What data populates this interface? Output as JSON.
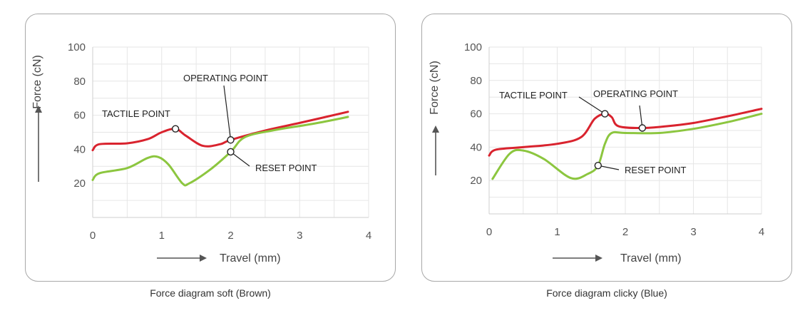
{
  "captions": [
    "Force diagram soft (Brown)",
    "Force diagram clicky (Blue)"
  ],
  "colors": {
    "red": "#d9232e",
    "green": "#8cc63f",
    "grid": "#e6e6e6"
  },
  "chart_data": [
    {
      "type": "line",
      "title": "Force diagram soft (Brown)",
      "xlabel": "Travel (mm)",
      "ylabel": "Force (cN)",
      "xlim": [
        0,
        4
      ],
      "ylim": [
        0,
        100
      ],
      "xticks": [
        "0",
        "1",
        "2",
        "3",
        "4"
      ],
      "yticks": [
        "20",
        "40",
        "60",
        "80",
        "100"
      ],
      "grid": true,
      "series": [
        {
          "color": "#d9232e",
          "x": [
            0,
            0.1,
            0.5,
            0.8,
            1.0,
            1.2,
            1.35,
            1.6,
            1.85,
            2.0,
            2.5,
            3.0,
            3.7
          ],
          "y": [
            39.5,
            43,
            43.5,
            46,
            50,
            52,
            48,
            42,
            43,
            45.5,
            51,
            55.5,
            62
          ]
        },
        {
          "color": "#8cc63f",
          "x": [
            0,
            0.1,
            0.5,
            0.8,
            0.95,
            1.1,
            1.3,
            1.4,
            1.7,
            2.0,
            2.2,
            2.6,
            3.2,
            3.7
          ],
          "y": [
            22,
            26,
            29,
            35,
            35.5,
            31,
            20,
            20,
            28,
            38.5,
            47,
            51,
            55,
            59
          ]
        }
      ],
      "annotations": [
        {
          "label": "TACTILE POINT",
          "x": 1.2,
          "y": 52
        },
        {
          "label": "OPERATING POINT",
          "x": 2.0,
          "y": 45.5
        },
        {
          "label": "RESET POINT",
          "x": 2.0,
          "y": 38.5
        }
      ]
    },
    {
      "type": "line",
      "title": "Force diagram clicky (Blue)",
      "xlabel": "Travel (mm)",
      "ylabel": "Force (cN)",
      "xlim": [
        0,
        4
      ],
      "ylim": [
        0,
        100
      ],
      "xticks": [
        "0",
        "1",
        "2",
        "3",
        "4"
      ],
      "yticks": [
        "20",
        "40",
        "60",
        "80",
        "100"
      ],
      "grid": true,
      "series": [
        {
          "color": "#d9232e",
          "x": [
            0,
            0.1,
            0.5,
            1.0,
            1.35,
            1.55,
            1.7,
            1.8,
            1.9,
            2.25,
            2.6,
            3.0,
            3.5,
            4.0
          ],
          "y": [
            35,
            38.5,
            40,
            42,
            46,
            57,
            60,
            58,
            52.5,
            51.5,
            52.5,
            54.5,
            58.5,
            63
          ]
        },
        {
          "color": "#8cc63f",
          "x": [
            0.05,
            0.3,
            0.5,
            0.8,
            1.2,
            1.45,
            1.6,
            1.7,
            1.8,
            2.0,
            2.5,
            3.0,
            3.5,
            4.0
          ],
          "y": [
            21,
            36,
            38,
            33,
            21.5,
            24,
            29,
            42,
            48.5,
            48.5,
            48.5,
            51,
            55,
            60
          ]
        }
      ],
      "annotations": [
        {
          "label": "TACTILE POINT",
          "x": 1.7,
          "y": 60
        },
        {
          "label": "OPERATING POINT",
          "x": 2.25,
          "y": 51.5
        },
        {
          "label": "RESET POINT",
          "x": 1.6,
          "y": 29
        }
      ]
    }
  ]
}
